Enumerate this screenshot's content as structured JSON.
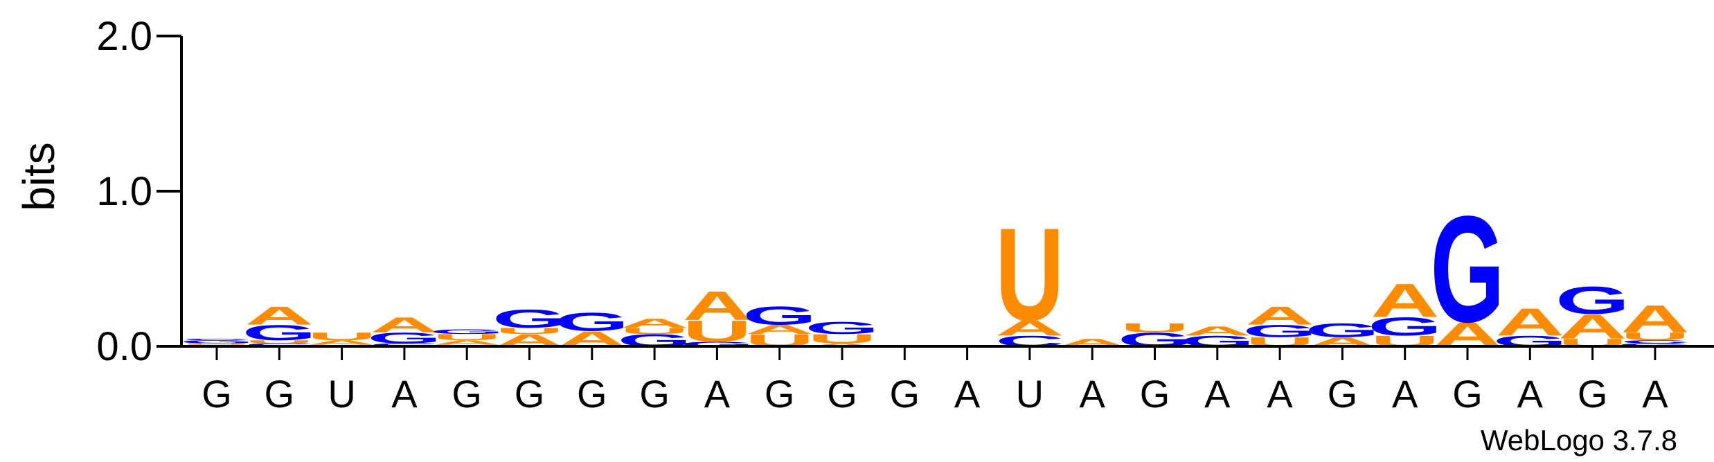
{
  "chart_data": {
    "type": "sequence-logo",
    "ylabel": "bits",
    "ylim": [
      0,
      2.0
    ],
    "y_ticks": [
      "0.0",
      "1.0",
      "2.0"
    ],
    "y_tick_values": [
      0,
      1,
      2
    ],
    "x_labels": [
      "G",
      "G",
      "U",
      "A",
      "G",
      "G",
      "G",
      "G",
      "A",
      "G",
      "G",
      "G",
      "A",
      "U",
      "A",
      "G",
      "A",
      "A",
      "G",
      "A",
      "G",
      "A",
      "G",
      "A"
    ],
    "colors": {
      "A": "#FF8C00",
      "U": "#FF8C00",
      "G": "#0000FF",
      "C": "#0000FF"
    },
    "positions": [
      [
        [
          "A",
          0.01
        ],
        [
          "U",
          0.01
        ],
        [
          "G",
          0.02
        ],
        [
          "C",
          0.01
        ]
      ],
      [
        [
          "C",
          0.02
        ],
        [
          "U",
          0.02
        ],
        [
          "G",
          0.1
        ],
        [
          "A",
          0.12
        ]
      ],
      [
        [
          "C",
          0.01
        ],
        [
          "A",
          0.03
        ],
        [
          "U",
          0.05
        ]
      ],
      [
        [
          "C",
          0.02
        ],
        [
          "G",
          0.07
        ],
        [
          "A",
          0.1
        ]
      ],
      [
        [
          "C",
          0.01
        ],
        [
          "A",
          0.03
        ],
        [
          "U",
          0.04
        ],
        [
          "G",
          0.03
        ]
      ],
      [
        [
          "A",
          0.08
        ],
        [
          "U",
          0.04
        ],
        [
          "G",
          0.12
        ]
      ],
      [
        [
          "A",
          0.1
        ],
        [
          "G",
          0.12
        ]
      ],
      [
        [
          "G",
          0.08
        ],
        [
          "U",
          0.04
        ],
        [
          "A",
          0.06
        ]
      ],
      [
        [
          "G",
          0.03
        ],
        [
          "U",
          0.14
        ],
        [
          "A",
          0.19
        ]
      ],
      [
        [
          "U",
          0.08
        ],
        [
          "A",
          0.06
        ],
        [
          "G",
          0.12
        ]
      ],
      [
        [
          "A",
          0.02
        ],
        [
          "U",
          0.06
        ],
        [
          "G",
          0.08
        ]
      ],
      [],
      [],
      [
        [
          "C",
          0.07
        ],
        [
          "A",
          0.1
        ],
        [
          "U",
          0.61
        ]
      ],
      [
        [
          "A",
          0.05
        ]
      ],
      [
        [
          "G",
          0.09
        ],
        [
          "U",
          0.06
        ]
      ],
      [
        [
          "G",
          0.07
        ],
        [
          "A",
          0.06
        ]
      ],
      [
        [
          "U",
          0.06
        ],
        [
          "G",
          0.08
        ],
        [
          "A",
          0.12
        ]
      ],
      [
        [
          "A",
          0.06
        ],
        [
          "G",
          0.09
        ]
      ],
      [
        [
          "U",
          0.07
        ],
        [
          "G",
          0.12
        ],
        [
          "A",
          0.22
        ]
      ],
      [
        [
          "A",
          0.16
        ],
        [
          "G",
          0.7
        ]
      ],
      [
        [
          "G",
          0.07
        ],
        [
          "A",
          0.18
        ]
      ],
      [
        [
          "U",
          0.05
        ],
        [
          "A",
          0.16
        ],
        [
          "G",
          0.18
        ]
      ],
      [
        [
          "G",
          0.02
        ],
        [
          "C",
          0.02
        ],
        [
          "U",
          0.05
        ],
        [
          "A",
          0.18
        ]
      ]
    ]
  },
  "watermark": "WebLogo 3.7.8"
}
